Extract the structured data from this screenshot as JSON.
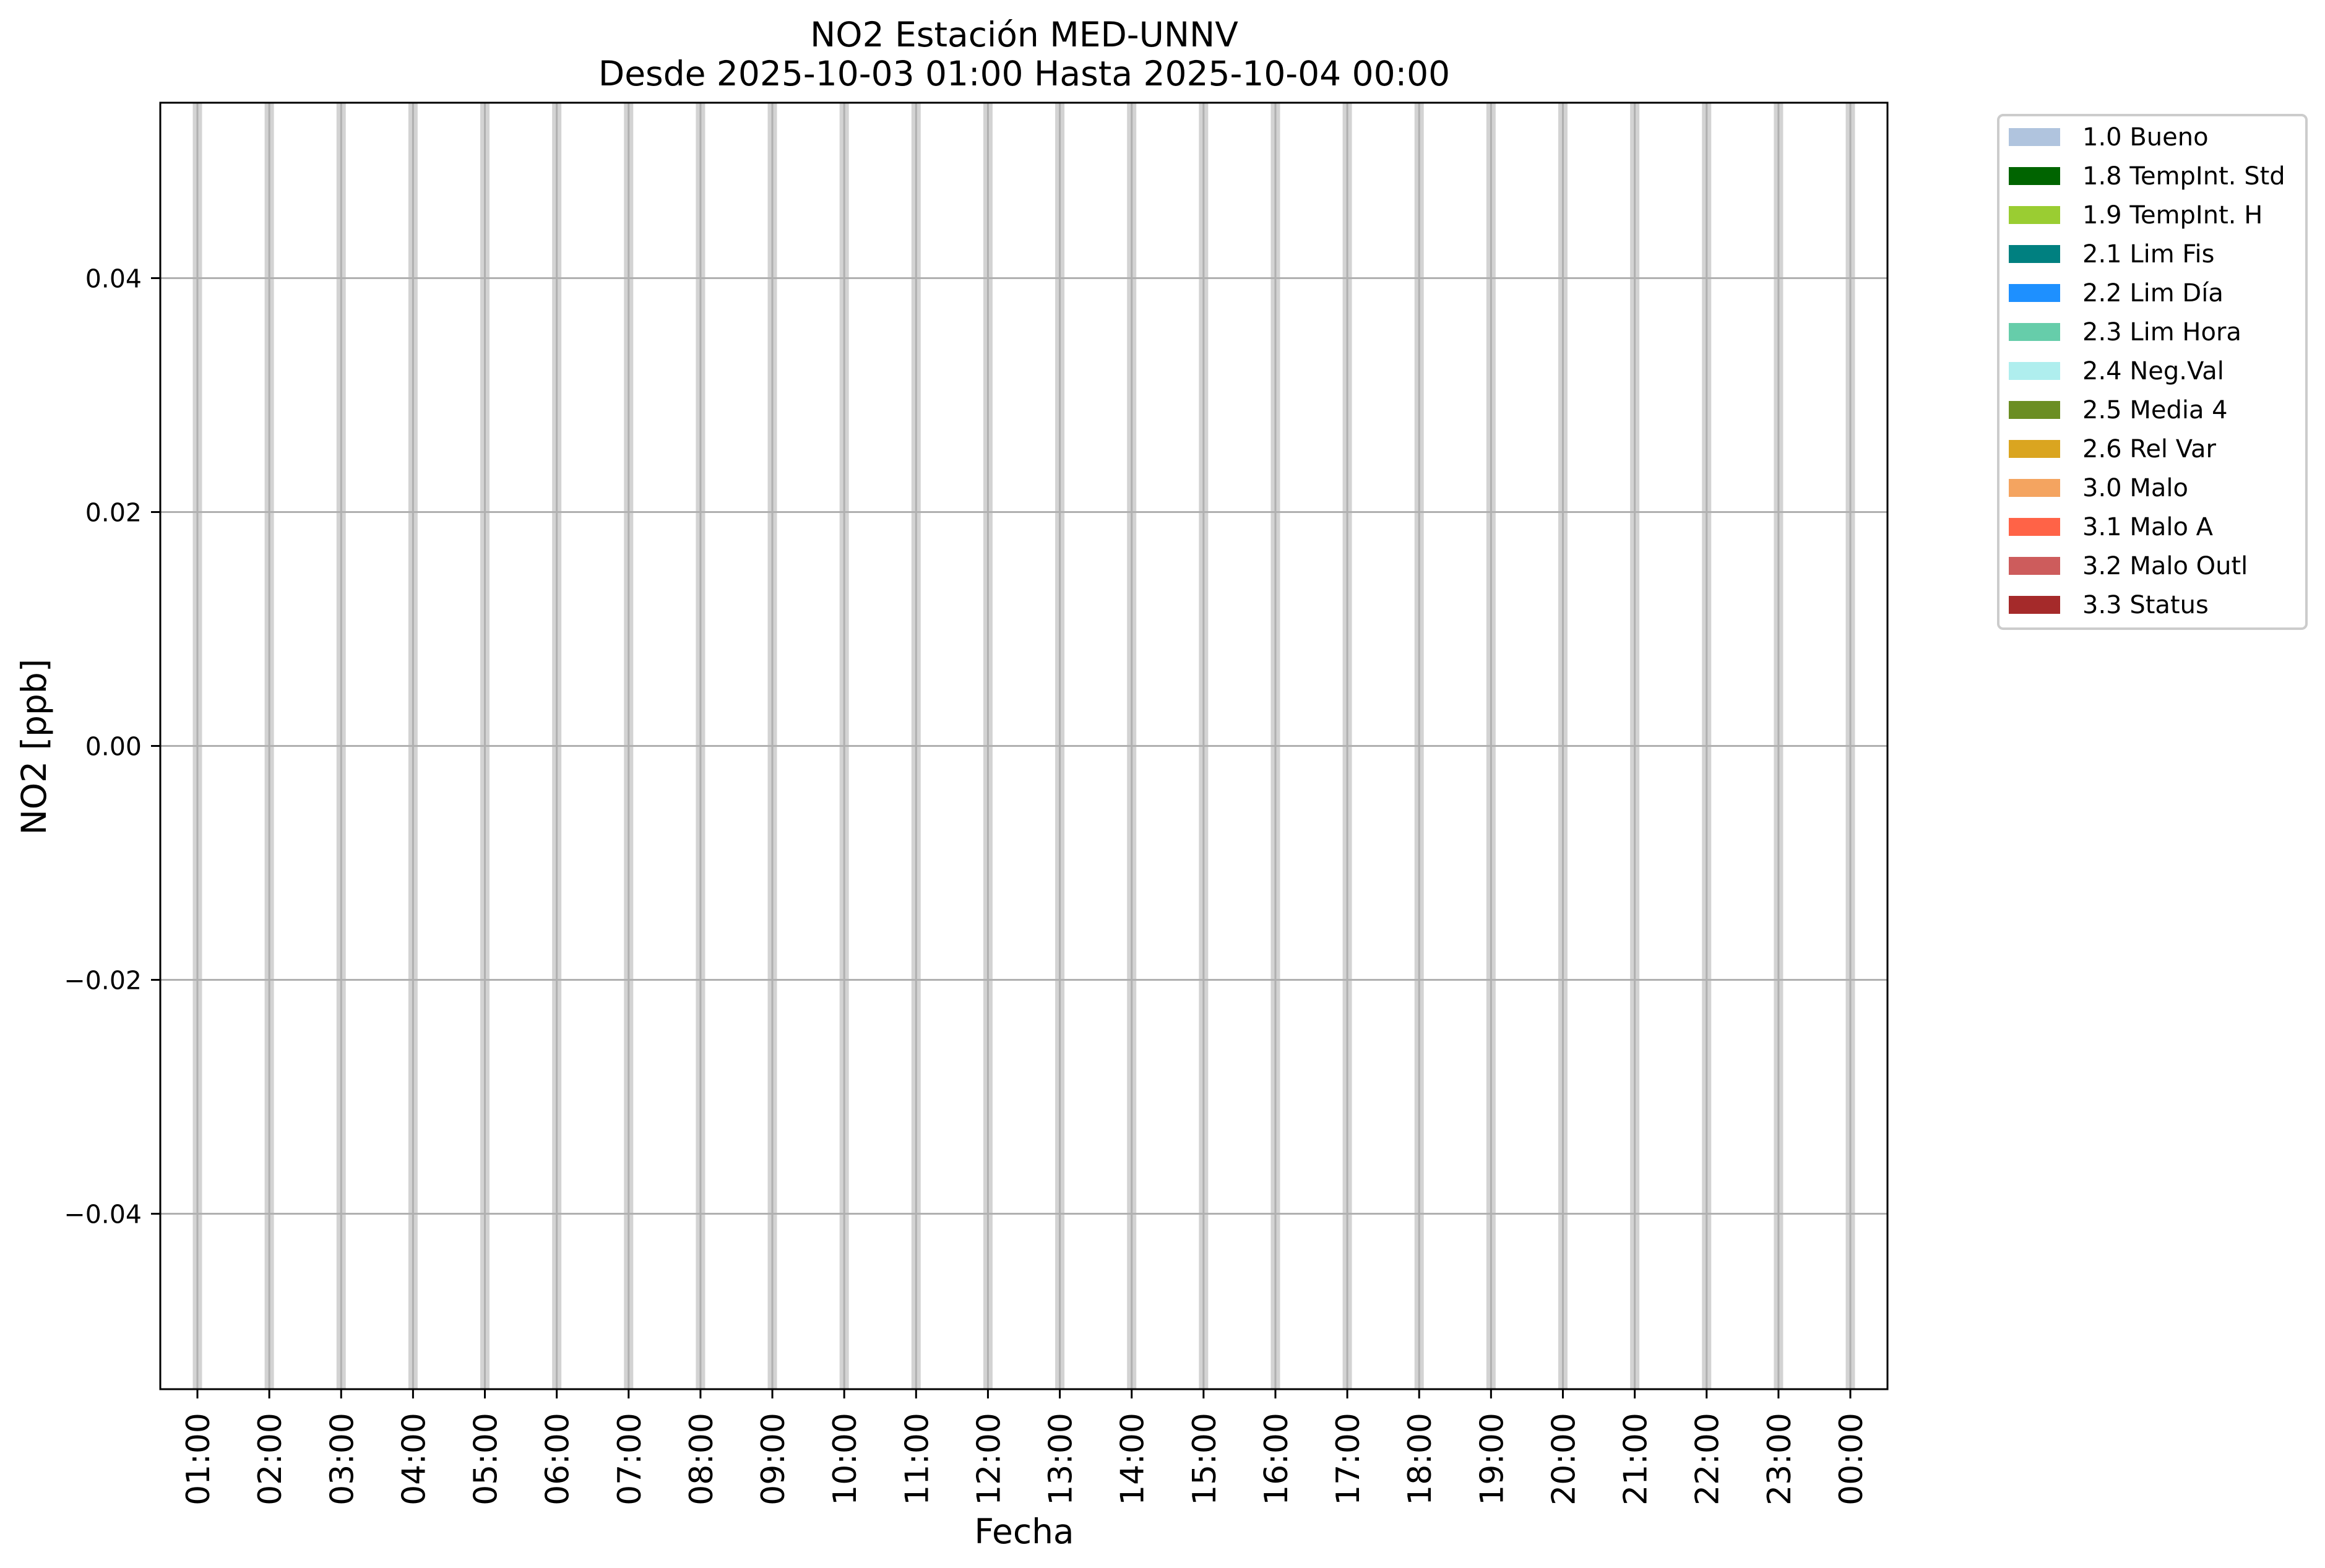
{
  "chart_data": {
    "type": "bar",
    "title": "NO2 Estación MED-UNNV",
    "subtitle": "Desde 2025-10-03 01:00 Hasta 2025-10-04 00:00",
    "xlabel": "Fecha",
    "ylabel": "NO2 [ppb]",
    "ylim": [
      -0.055,
      0.055
    ],
    "xlim": [
      "2025-10-03T00:29:00",
      "2025-10-04T00:31:00"
    ],
    "grid": true,
    "yticks": [
      0.04,
      0.02,
      0.0,
      -0.02,
      -0.04
    ],
    "ytick_labels": [
      "0.04",
      "0.02",
      "0.00",
      "−0.02",
      "−0.04"
    ],
    "xticks": [
      "2025-10-03T01:00:00",
      "2025-10-03T02:00:00",
      "2025-10-03T03:00:00",
      "2025-10-03T04:00:00",
      "2025-10-03T05:00:00",
      "2025-10-03T06:00:00",
      "2025-10-03T07:00:00",
      "2025-10-03T08:00:00",
      "2025-10-03T09:00:00",
      "2025-10-03T10:00:00",
      "2025-10-03T11:00:00",
      "2025-10-03T12:00:00",
      "2025-10-03T13:00:00",
      "2025-10-03T14:00:00",
      "2025-10-03T15:00:00",
      "2025-10-03T16:00:00",
      "2025-10-03T17:00:00",
      "2025-10-03T18:00:00",
      "2025-10-03T19:00:00",
      "2025-10-03T20:00:00",
      "2025-10-03T21:00:00",
      "2025-10-03T22:00:00",
      "2025-10-03T23:00:00",
      "2025-10-04T00:00:00"
    ],
    "xtick_labels": [
      "01:00",
      "02:00",
      "03:00",
      "04:00",
      "05:00",
      "06:00",
      "07:00",
      "08:00",
      "09:00",
      "10:00",
      "11:00",
      "12:00",
      "13:00",
      "14:00",
      "15:00",
      "16:00",
      "17:00",
      "18:00",
      "19:00",
      "20:00",
      "21:00",
      "22:00",
      "23:00",
      "00:00"
    ],
    "hour_bands_color": "#d3d3d3",
    "grid_color": "#b0b0b0",
    "legend_placement": "outside-top-right",
    "legend": [
      {
        "label": "1.0 Bueno",
        "color": "#b0c4de"
      },
      {
        "label": "1.8 TempInt. Std",
        "color": "#006400"
      },
      {
        "label": "1.9 TempInt. H",
        "color": "#9acd32"
      },
      {
        "label": "2.1 Lim Fis",
        "color": "#008080"
      },
      {
        "label": "2.2 Lim Día",
        "color": "#1e90ff"
      },
      {
        "label": "2.3 Lim Hora",
        "color": "#66cdaa"
      },
      {
        "label": "2.4 Neg.Val",
        "color": "#afeeee"
      },
      {
        "label": "2.5 Media 4",
        "color": "#6b8e23"
      },
      {
        "label": "2.6 Rel Var",
        "color": "#daa520"
      },
      {
        "label": "3.0 Malo",
        "color": "#f4a460"
      },
      {
        "label": "3.1 Malo A",
        "color": "#ff6347"
      },
      {
        "label": "3.2 Malo Outl",
        "color": "#cd5c5c"
      },
      {
        "label": "3.3 Status",
        "color": "#a52a2a"
      }
    ]
  }
}
